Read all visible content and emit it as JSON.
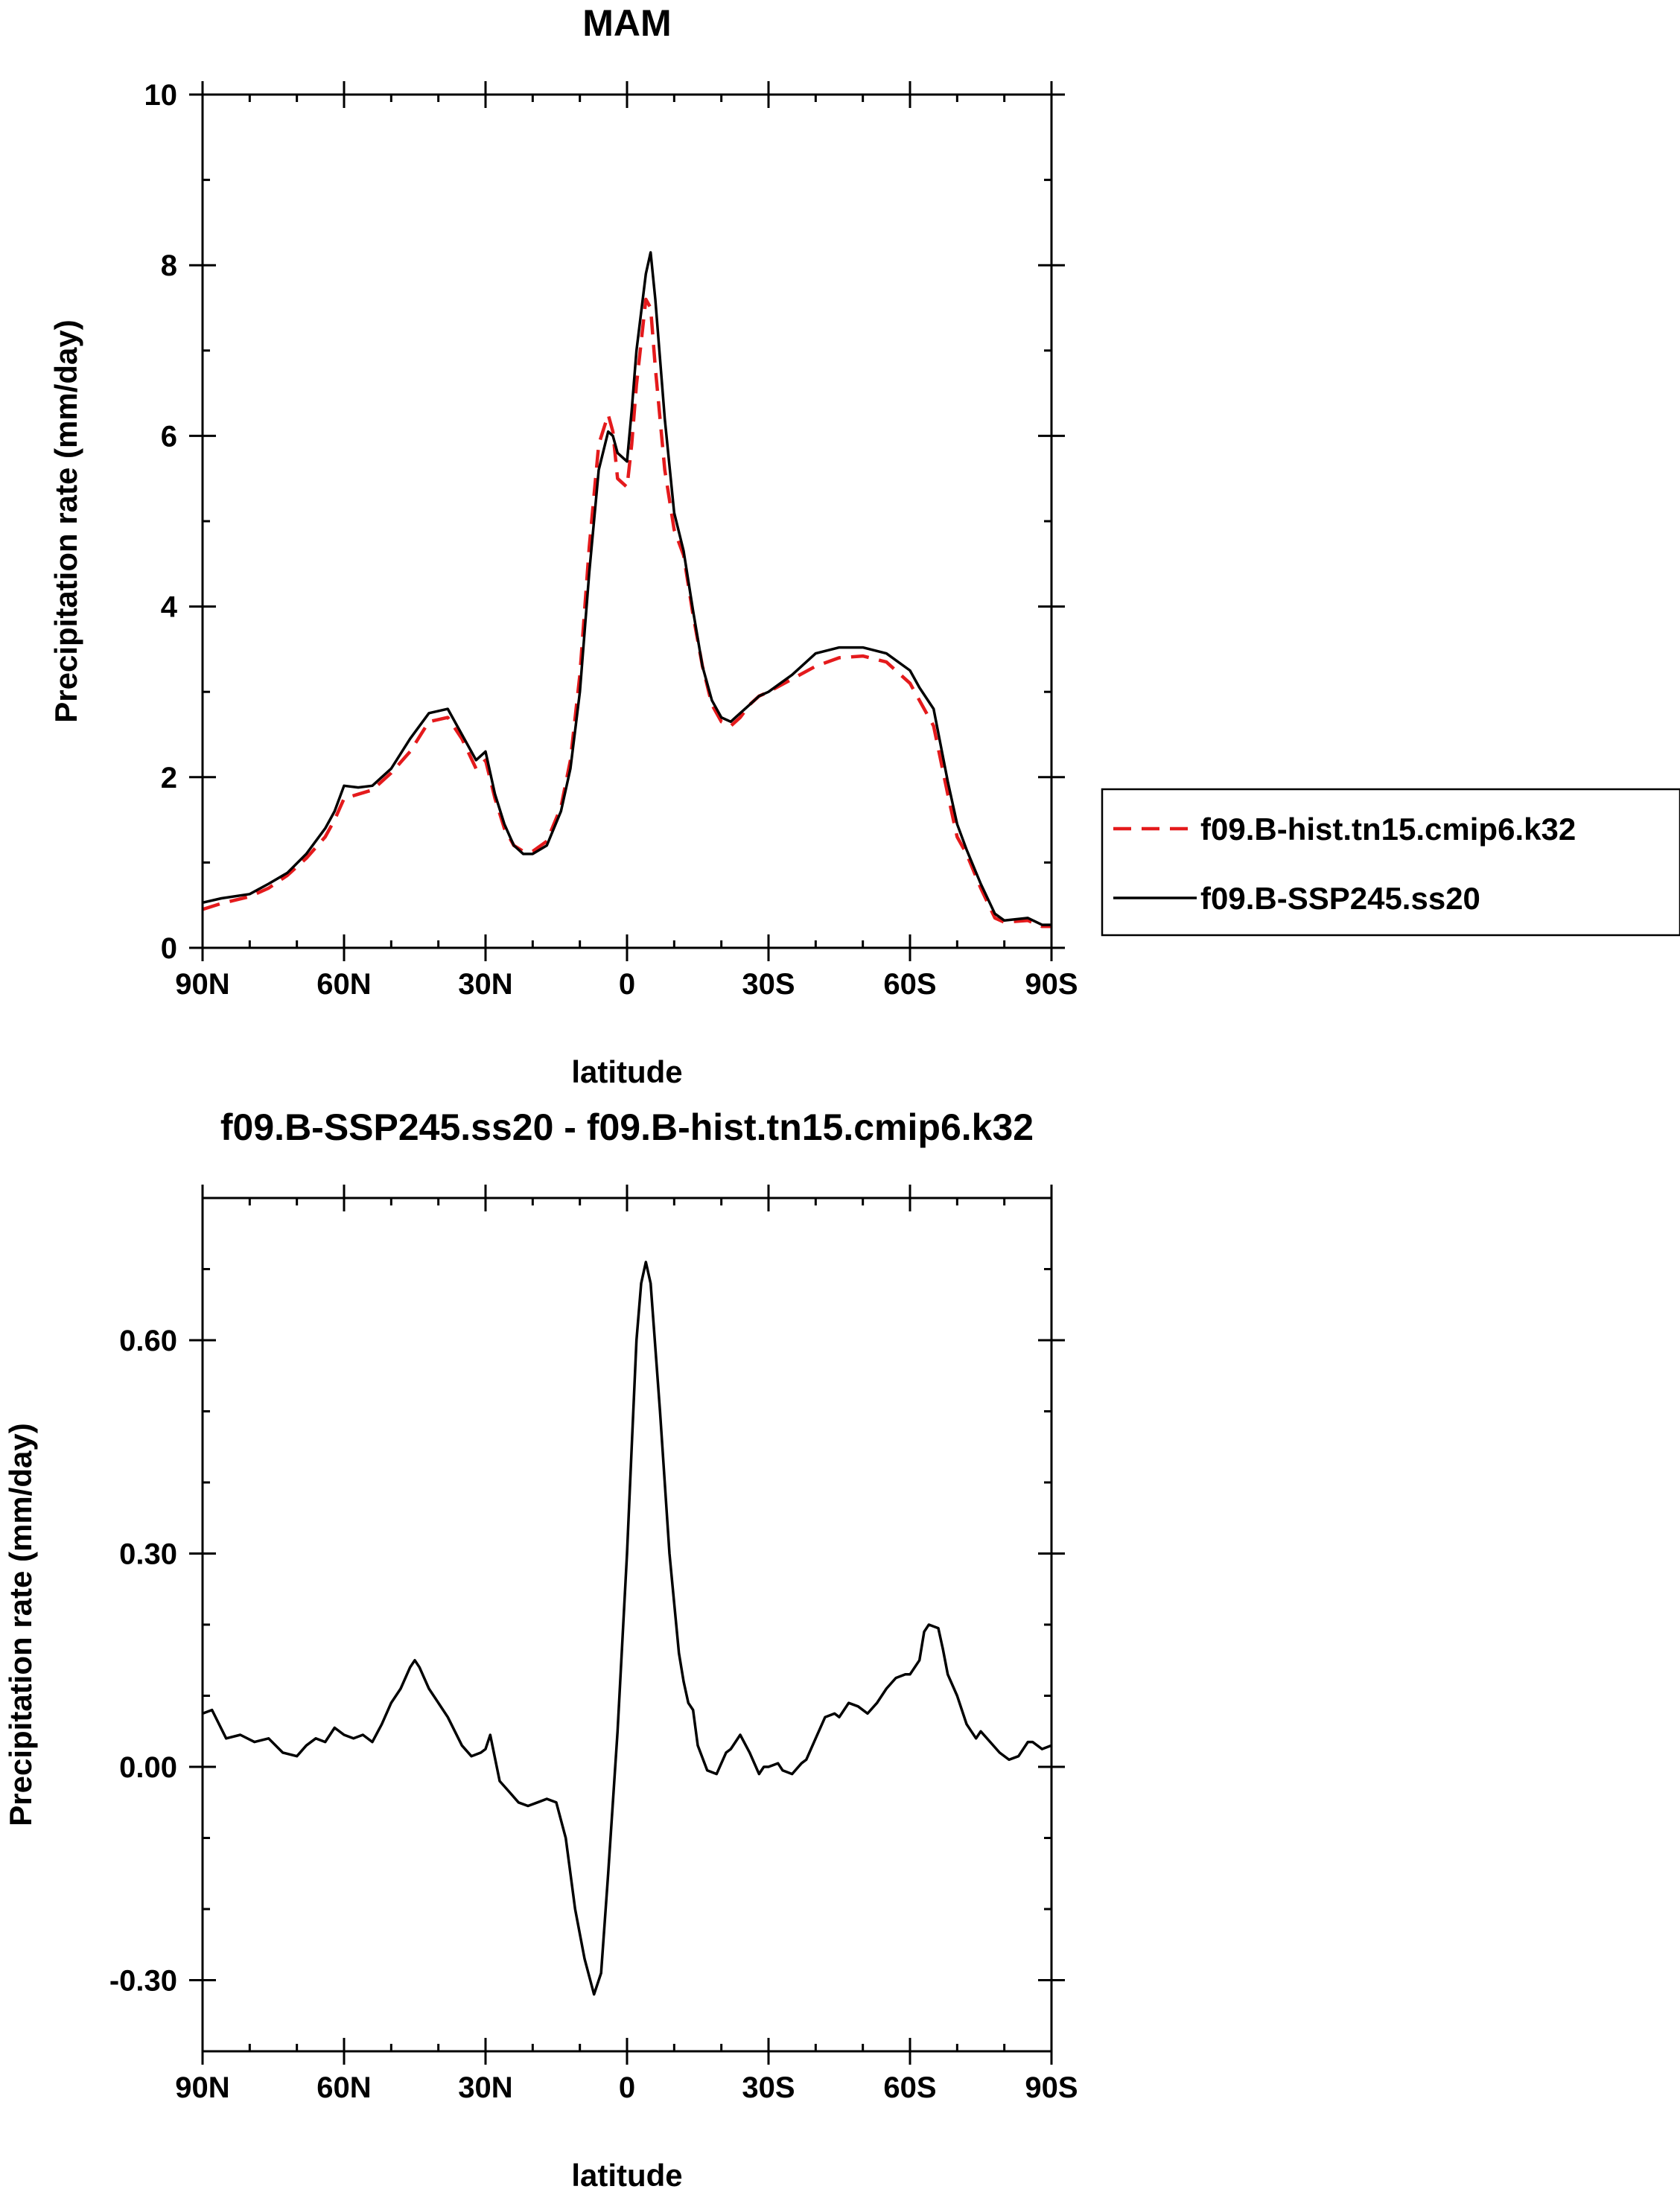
{
  "chart_data": [
    {
      "type": "line",
      "title": "MAM",
      "xlabel": "latitude",
      "ylabel": "Precipitation rate (mm/day)",
      "xlim": [
        -90,
        90
      ],
      "ylim": [
        0,
        10
      ],
      "x_ticks": [
        -90,
        -60,
        -30,
        0,
        30,
        60,
        90
      ],
      "x_tick_labels": [
        "90N",
        "60N",
        "30N",
        "0",
        "30S",
        "60S",
        "90S"
      ],
      "y_ticks": [
        0,
        2,
        4,
        6,
        8,
        10
      ],
      "y_tick_labels": [
        "0",
        "2",
        "4",
        "6",
        "8",
        "10"
      ],
      "legend": "right",
      "series": [
        {
          "name": "f09.B-hist.tn15.cmip6.k32",
          "color": "#e41a1c",
          "dash": "dashed",
          "x": [
            -90,
            -86,
            -80,
            -76,
            -72,
            -68,
            -64,
            -62,
            -60,
            -57,
            -54,
            -50,
            -46,
            -42,
            -38,
            -35,
            -32,
            -30,
            -28,
            -26,
            -24,
            -22,
            -20,
            -17,
            -14,
            -12,
            -10,
            -8,
            -6,
            -4,
            -3,
            -2,
            0,
            1,
            2,
            4,
            5,
            6,
            8,
            10,
            12,
            14,
            16,
            18,
            20,
            22,
            24,
            26,
            28,
            30,
            35,
            40,
            45,
            50,
            55,
            60,
            62,
            65,
            68,
            70,
            72,
            75,
            78,
            80,
            85,
            88,
            90
          ],
          "y": [
            0.45,
            0.52,
            0.6,
            0.7,
            0.85,
            1.05,
            1.3,
            1.5,
            1.75,
            1.8,
            1.85,
            2.05,
            2.3,
            2.65,
            2.7,
            2.45,
            2.1,
            2.2,
            1.75,
            1.4,
            1.2,
            1.13,
            1.13,
            1.25,
            1.65,
            2.2,
            3.2,
            4.7,
            5.9,
            6.25,
            6.05,
            5.5,
            5.4,
            5.9,
            6.6,
            7.6,
            7.5,
            6.8,
            5.6,
            4.9,
            4.6,
            3.9,
            3.3,
            2.85,
            2.65,
            2.6,
            2.7,
            2.85,
            2.95,
            3.0,
            3.15,
            3.3,
            3.4,
            3.42,
            3.35,
            3.1,
            2.9,
            2.6,
            1.8,
            1.3,
            1.1,
            0.7,
            0.35,
            0.3,
            0.32,
            0.25,
            0.25
          ]
        },
        {
          "name": "f09.B-SSP245.ss20",
          "color": "#000000",
          "dash": "solid",
          "x": [
            -90,
            -86,
            -80,
            -76,
            -72,
            -68,
            -64,
            -62,
            -60,
            -57,
            -54,
            -50,
            -46,
            -42,
            -38,
            -35,
            -32,
            -30,
            -28,
            -26,
            -24,
            -22,
            -20,
            -17,
            -14,
            -12,
            -10,
            -8,
            -6,
            -4,
            -3,
            -2,
            0,
            1,
            2,
            4,
            5,
            6,
            8,
            10,
            12,
            14,
            16,
            18,
            20,
            22,
            24,
            26,
            28,
            30,
            35,
            40,
            45,
            50,
            55,
            60,
            62,
            65,
            68,
            70,
            72,
            75,
            78,
            80,
            85,
            88,
            90
          ],
          "y": [
            0.53,
            0.58,
            0.63,
            0.75,
            0.88,
            1.1,
            1.4,
            1.6,
            1.9,
            1.88,
            1.9,
            2.1,
            2.45,
            2.75,
            2.8,
            2.5,
            2.2,
            2.3,
            1.8,
            1.45,
            1.2,
            1.1,
            1.1,
            1.2,
            1.6,
            2.1,
            3.0,
            4.4,
            5.6,
            6.05,
            6.0,
            5.8,
            5.7,
            6.3,
            7.0,
            7.9,
            8.15,
            7.6,
            6.2,
            5.1,
            4.65,
            3.95,
            3.3,
            2.9,
            2.7,
            2.65,
            2.75,
            2.85,
            2.95,
            3.0,
            3.2,
            3.45,
            3.52,
            3.52,
            3.45,
            3.25,
            3.05,
            2.8,
            1.95,
            1.45,
            1.15,
            0.75,
            0.4,
            0.32,
            0.35,
            0.27,
            0.27
          ]
        }
      ]
    },
    {
      "type": "line",
      "title": "f09.B-SSP245.ss20 - f09.B-hist.tn15.cmip6.k32",
      "xlabel": "latitude",
      "ylabel": "Precipitation rate (mm/day)",
      "xlim": [
        -90,
        90
      ],
      "ylim": [
        -0.4,
        0.8
      ],
      "x_ticks": [
        -90,
        -60,
        -30,
        0,
        30,
        60,
        90
      ],
      "x_tick_labels": [
        "90N",
        "60N",
        "30N",
        "0",
        "30S",
        "60S",
        "90S"
      ],
      "y_ticks": [
        -0.3,
        0.0,
        0.3,
        0.6
      ],
      "y_tick_labels": [
        "-0.30",
        "0.00",
        "0.30",
        "0.60"
      ],
      "series": [
        {
          "name": "f09.B-SSP245.ss20 - f09.B-hist.tn15.cmip6.k32",
          "color": "#000000",
          "dash": "solid",
          "x": [
            -90,
            -88,
            -85,
            -82,
            -79,
            -76,
            -73,
            -70,
            -68,
            -66,
            -64,
            -62,
            -60,
            -58,
            -56,
            -54,
            -52,
            -50,
            -48,
            -46,
            -45,
            -44,
            -42,
            -40,
            -38,
            -35,
            -33,
            -31,
            -30,
            -29,
            -27,
            -25,
            -23,
            -21,
            -19,
            -17,
            -15,
            -13,
            -11,
            -9,
            -7,
            -5.5,
            -4,
            -2,
            0,
            1,
            2,
            3,
            4,
            5,
            7,
            9,
            11,
            12,
            13,
            14,
            15,
            17,
            19,
            21,
            22,
            24,
            26,
            28,
            29,
            30,
            32,
            33,
            35,
            37,
            38,
            40,
            42,
            44,
            45,
            47,
            49,
            51,
            53,
            55,
            57,
            59,
            60,
            62,
            63,
            64,
            66,
            67,
            68,
            70,
            72,
            74,
            75,
            77,
            79,
            81,
            83,
            85,
            86,
            88,
            90
          ],
          "y": [
            0.075,
            0.08,
            0.04,
            0.045,
            0.035,
            0.04,
            0.02,
            0.015,
            0.03,
            0.04,
            0.035,
            0.055,
            0.045,
            0.04,
            0.045,
            0.035,
            0.06,
            0.09,
            0.11,
            0.14,
            0.15,
            0.14,
            0.11,
            0.09,
            0.07,
            0.03,
            0.015,
            0.02,
            0.025,
            0.045,
            -0.02,
            -0.035,
            -0.05,
            -0.055,
            -0.05,
            -0.045,
            -0.05,
            -0.1,
            -0.2,
            -0.27,
            -0.32,
            -0.29,
            -0.15,
            0.05,
            0.3,
            0.45,
            0.6,
            0.68,
            0.71,
            0.68,
            0.5,
            0.3,
            0.16,
            0.12,
            0.09,
            0.08,
            0.03,
            -0.005,
            -0.01,
            0.02,
            0.025,
            0.045,
            0.02,
            -0.01,
            0.0,
            0.0,
            0.005,
            -0.005,
            -0.01,
            0.005,
            0.01,
            0.04,
            0.07,
            0.075,
            0.07,
            0.09,
            0.085,
            0.075,
            0.09,
            0.11,
            0.125,
            0.13,
            0.13,
            0.15,
            0.19,
            0.2,
            0.195,
            0.165,
            0.13,
            0.1,
            0.06,
            0.04,
            0.05,
            0.035,
            0.02,
            0.01,
            0.015,
            0.035,
            0.035,
            0.025,
            0.03
          ]
        }
      ]
    }
  ]
}
